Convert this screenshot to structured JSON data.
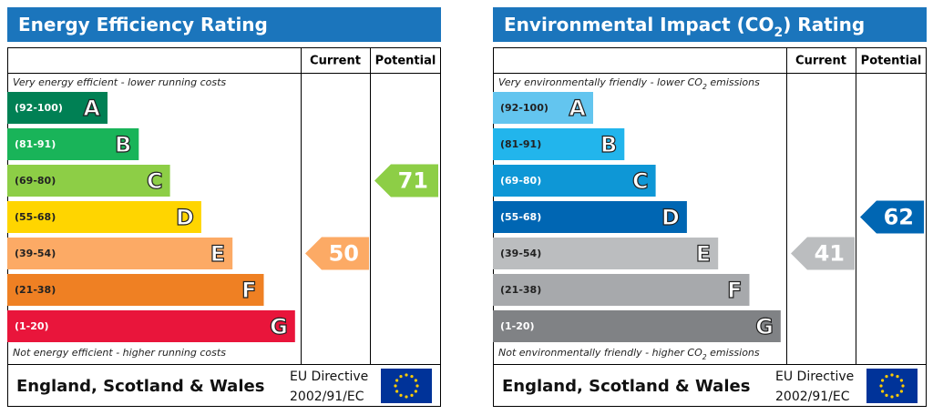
{
  "panels": [
    {
      "title": [
        "Energy Efficiency Rating"
      ],
      "columns": [
        "Current",
        "Potential"
      ],
      "top_note": [
        "Very energy efficient - lower running costs"
      ],
      "bottom_note": [
        "Not energy efficient - higher running costs"
      ],
      "bands": [
        {
          "range": "(92-100)",
          "letter": "A",
          "color": "#008054"
        },
        {
          "range": "(81-91)",
          "letter": "B",
          "color": "#19b459"
        },
        {
          "range": "(69-80)",
          "letter": "C",
          "color": "#8dce46"
        },
        {
          "range": "(55-68)",
          "letter": "D",
          "color": "#ffd500"
        },
        {
          "range": "(39-54)",
          "letter": "E",
          "color": "#fcaa65"
        },
        {
          "range": "(21-38)",
          "letter": "F",
          "color": "#ef8023"
        },
        {
          "range": "(1-20)",
          "letter": "G",
          "color": "#e9153b"
        }
      ],
      "current": 50,
      "potential": 71,
      "footer": {
        "region": "England, Scotland & Wales",
        "directive": [
          "EU Directive",
          "2002/91/EC"
        ]
      }
    },
    {
      "title": [
        "Environmental Impact (CO",
        "2",
        ") Rating"
      ],
      "columns": [
        "Current",
        "Potential"
      ],
      "top_note": [
        "Very environmentally friendly - lower CO",
        "2",
        " emissions"
      ],
      "bottom_note": [
        "Not environmentally friendly - higher CO",
        "2",
        " emissions"
      ],
      "bands": [
        {
          "range": "(92-100)",
          "letter": "A",
          "color": "#63c5ef"
        },
        {
          "range": "(81-91)",
          "letter": "B",
          "color": "#22b5ec"
        },
        {
          "range": "(69-80)",
          "letter": "C",
          "color": "#0e97d6"
        },
        {
          "range": "(55-68)",
          "letter": "D",
          "color": "#0066b3"
        },
        {
          "range": "(39-54)",
          "letter": "E",
          "color": "#bbbdbf"
        },
        {
          "range": "(21-38)",
          "letter": "F",
          "color": "#a7a9ac"
        },
        {
          "range": "(1-20)",
          "letter": "G",
          "color": "#808285"
        }
      ],
      "current": 41,
      "potential": 62,
      "footer": {
        "region": "England, Scotland & Wales",
        "directive": [
          "EU Directive",
          "2002/91/EC"
        ]
      }
    }
  ]
}
